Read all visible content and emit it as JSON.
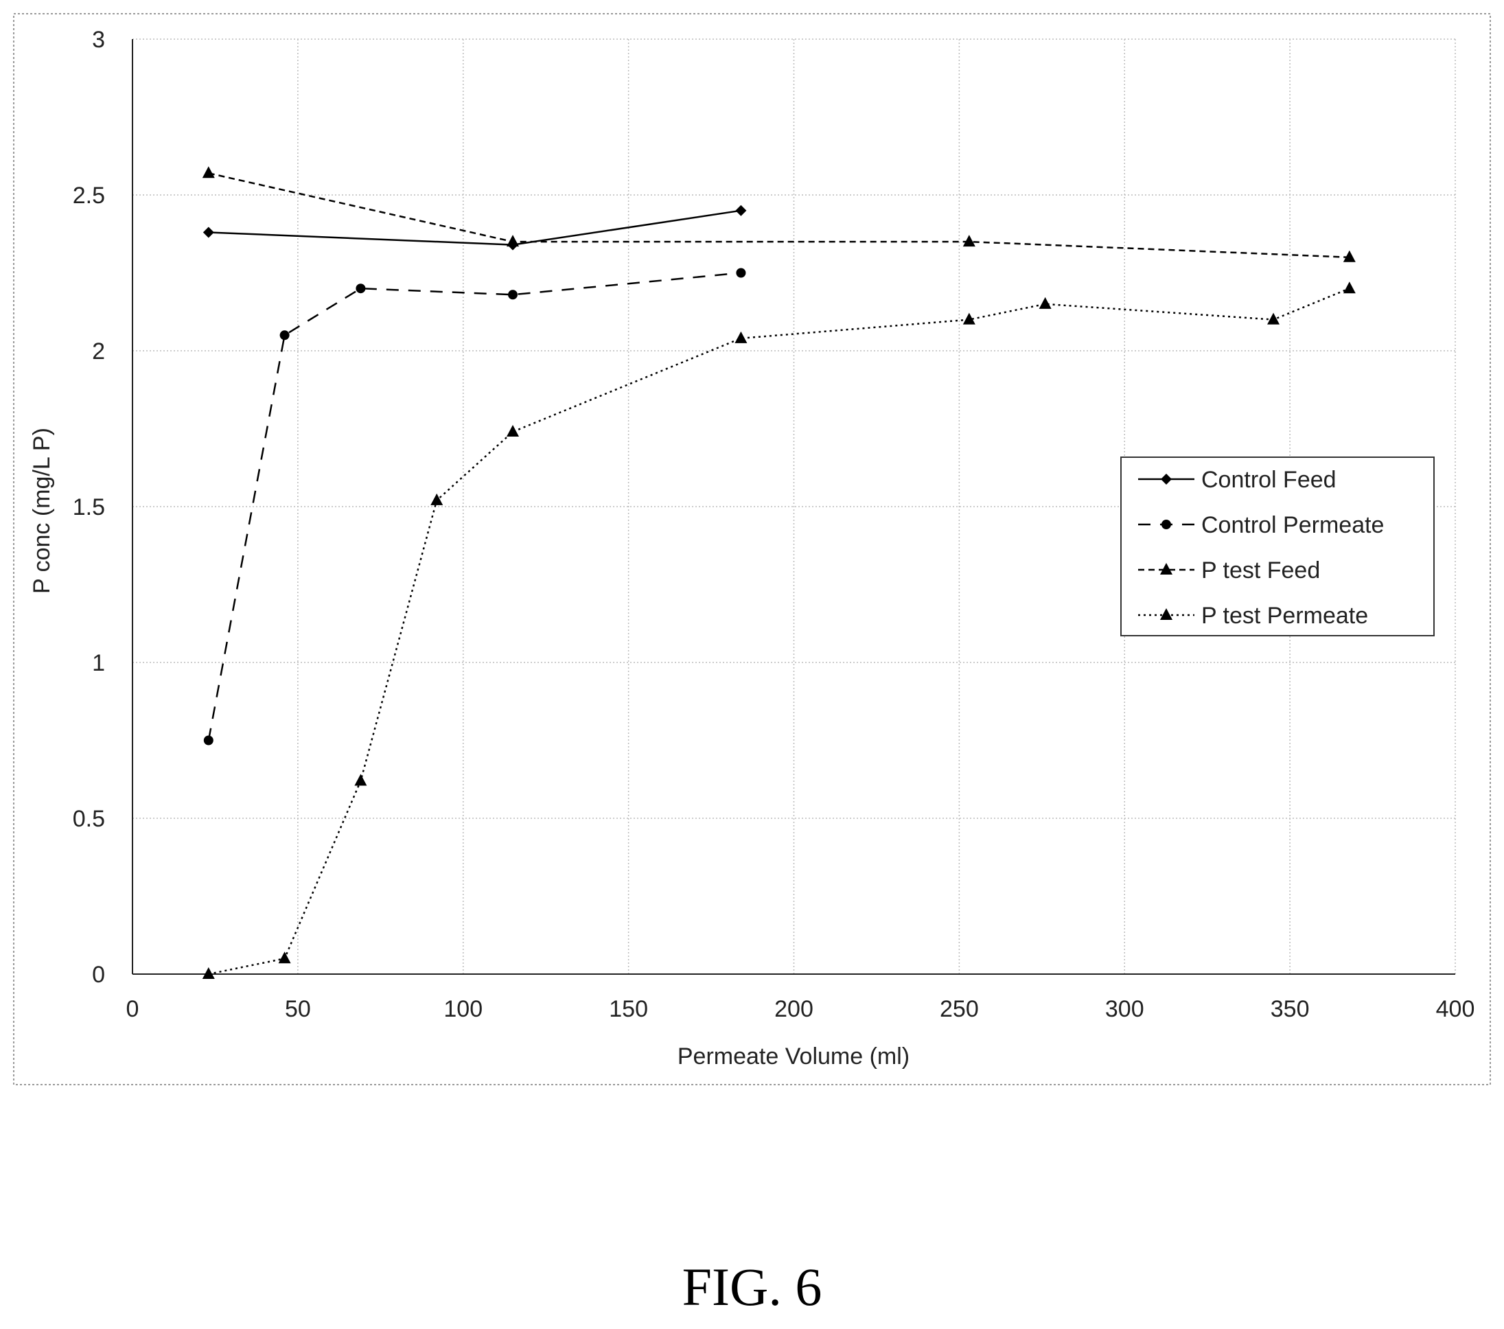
{
  "figure_caption": "FIG. 6",
  "chart_data": {
    "type": "line",
    "title": "",
    "xlabel": "Permeate Volume (ml)",
    "ylabel": "P conc (mg/L P)",
    "xlim": [
      0,
      400
    ],
    "ylim": [
      0,
      3
    ],
    "x_ticks": [
      "0",
      "50",
      "100",
      "150",
      "200",
      "250",
      "300",
      "350",
      "400"
    ],
    "y_ticks": [
      "0",
      "0.5",
      "1",
      "1.5",
      "2",
      "2.5",
      "3"
    ],
    "grid": true,
    "legend_position": "right",
    "series": [
      {
        "name": "Control Feed",
        "line_style": "solid",
        "marker": "diamond",
        "color": "#000000",
        "x": [
          23,
          115,
          184
        ],
        "y": [
          2.38,
          2.34,
          2.45
        ]
      },
      {
        "name": "Control Permeate",
        "line_style": "dashed",
        "marker": "circle",
        "color": "#000000",
        "x": [
          23,
          46,
          69,
          115,
          184
        ],
        "y": [
          0.75,
          2.05,
          2.2,
          2.18,
          2.25
        ]
      },
      {
        "name": "P test Feed",
        "line_style": "short-dashed",
        "marker": "triangle",
        "color": "#000000",
        "x": [
          23,
          115,
          253,
          368
        ],
        "y": [
          2.57,
          2.35,
          2.35,
          2.3
        ]
      },
      {
        "name": "P test Permeate",
        "line_style": "dotted",
        "marker": "triangle",
        "color": "#000000",
        "x": [
          23,
          46,
          69,
          92,
          115,
          184,
          253,
          276,
          345,
          368
        ],
        "y": [
          0.0,
          0.05,
          0.62,
          1.52,
          1.74,
          2.04,
          2.1,
          2.15,
          2.1,
          2.2
        ]
      }
    ]
  }
}
